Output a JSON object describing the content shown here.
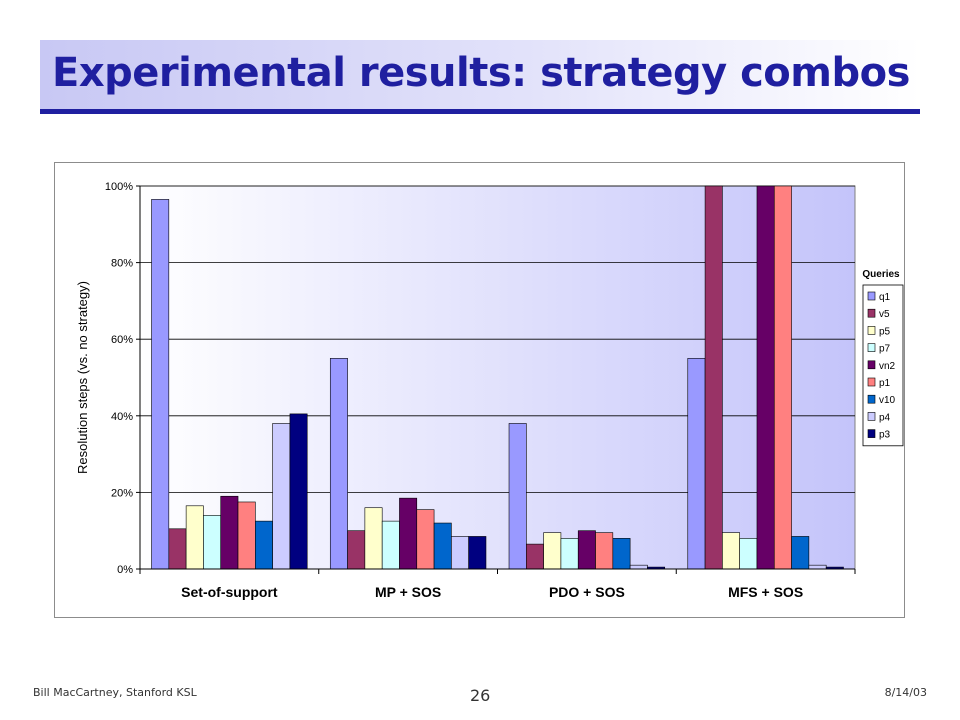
{
  "slide": {
    "title": "Experimental results: strategy combos",
    "footer_left": "Bill MacCartney, Stanford KSL",
    "footer_right": "8/14/03",
    "page_number": "26"
  },
  "colors": {
    "title_text": "#1f1fa0",
    "title_rule": "#1f1fa0"
  },
  "chart_data": {
    "type": "bar",
    "ylabel": "Resolution steps (vs. no strategy)",
    "xlabel": "",
    "ylim": [
      0,
      100
    ],
    "yticks": [
      0,
      20,
      40,
      60,
      80,
      100
    ],
    "ytick_labels": [
      "0%",
      "20%",
      "40%",
      "60%",
      "80%",
      "100%"
    ],
    "grid": true,
    "legend_title": "Queries",
    "legend_position": "right",
    "categories": [
      "Set-of-support",
      "MP + SOS",
      "PDO + SOS",
      "MFS + SOS"
    ],
    "series": [
      {
        "name": "q1",
        "color": "#9999ff",
        "values": [
          96.5,
          55,
          38,
          55
        ]
      },
      {
        "name": "v5",
        "color": "#993366",
        "values": [
          10.5,
          10,
          6.5,
          100
        ]
      },
      {
        "name": "p5",
        "color": "#ffffcc",
        "values": [
          16.5,
          16,
          9.5,
          9.5
        ]
      },
      {
        "name": "p7",
        "color": "#ccffff",
        "values": [
          14,
          12.5,
          8,
          8
        ]
      },
      {
        "name": "vn2",
        "color": "#660066",
        "values": [
          19,
          18.5,
          10,
          100
        ]
      },
      {
        "name": "p1",
        "color": "#ff8080",
        "values": [
          17.5,
          15.5,
          9.5,
          100
        ]
      },
      {
        "name": "v10",
        "color": "#0066cc",
        "values": [
          12.5,
          12,
          8,
          8.5
        ]
      },
      {
        "name": "p4",
        "color": "#ccccff",
        "values": [
          38,
          8.5,
          1,
          1
        ]
      },
      {
        "name": "p3",
        "color": "#000080",
        "values": [
          40.5,
          8.5,
          0.5,
          0.5
        ]
      }
    ]
  }
}
